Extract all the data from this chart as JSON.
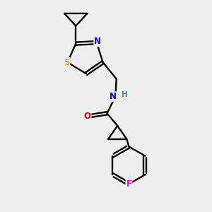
{
  "background_color": "#eeeeee",
  "atom_colors": {
    "S": "#ccbb00",
    "N": "#0000ee",
    "O": "#dd0000",
    "F": "#ee00ee",
    "H": "#448888",
    "C": "#000000"
  },
  "figsize": [
    3.0,
    3.0
  ],
  "dpi": 100,
  "xlim": [
    0,
    10
  ],
  "ylim": [
    0,
    10
  ]
}
